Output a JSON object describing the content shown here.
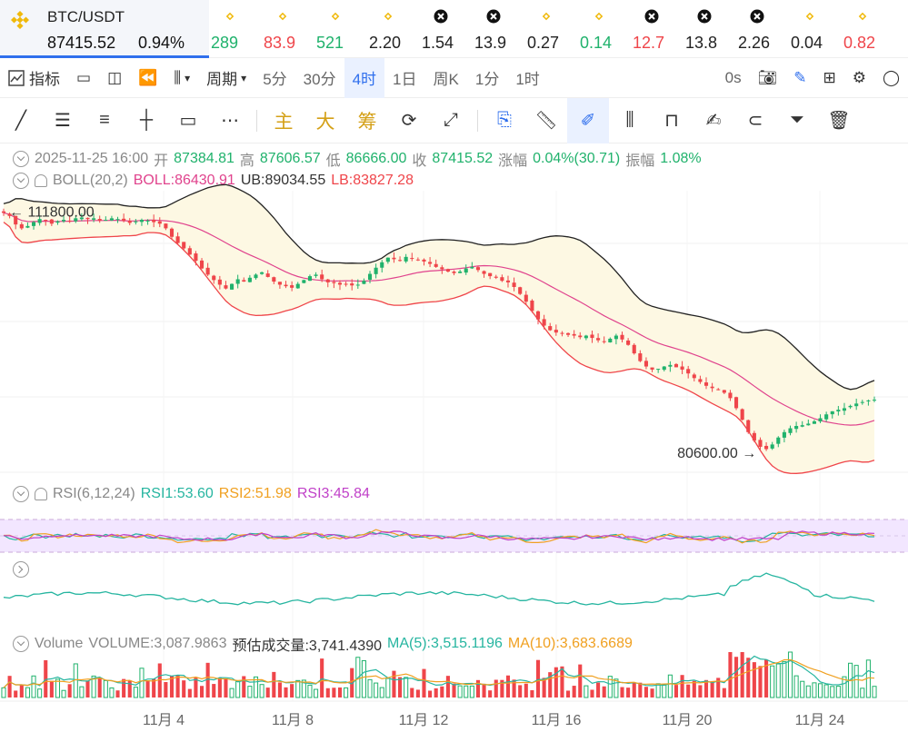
{
  "pair": {
    "symbol": "BTC/USDT",
    "price": "87415.52",
    "change": "0.94%",
    "icon": "binance-icon"
  },
  "tickers": [
    {
      "icon": "binance-icon",
      "value": "289",
      "tone": "up"
    },
    {
      "icon": "binance-icon",
      "value": "83.9",
      "tone": "dn"
    },
    {
      "icon": "binance-icon",
      "value": "521",
      "tone": "up"
    },
    {
      "icon": "binance-icon",
      "value": "2.20",
      "tone": "nt"
    },
    {
      "icon": "x-coin-icon",
      "value": "1.54",
      "tone": "nt"
    },
    {
      "icon": "x-coin-icon",
      "value": "13.9",
      "tone": "nt"
    },
    {
      "icon": "binance-icon",
      "value": "0.27",
      "tone": "nt"
    },
    {
      "icon": "binance-icon",
      "value": "0.14",
      "tone": "up"
    },
    {
      "icon": "x-coin-icon",
      "value": "12.7",
      "tone": "dn"
    },
    {
      "icon": "x-coin-icon",
      "value": "13.8",
      "tone": "nt"
    },
    {
      "icon": "x-coin-icon",
      "value": "2.26",
      "tone": "nt"
    },
    {
      "icon": "binance-icon",
      "value": "0.04",
      "tone": "nt"
    },
    {
      "icon": "binance-icon",
      "value": "0.82",
      "tone": "dn"
    }
  ],
  "toolbar": {
    "indicators": "指标",
    "period_label": "周期",
    "periods": [
      "5分",
      "30分",
      "4时",
      "1日",
      "周K",
      "1分",
      "1时"
    ],
    "active_period": "4时",
    "countdown": "0s"
  },
  "tools": {
    "main": "主",
    "big": "大",
    "chip": "筹"
  },
  "ohlc": {
    "time": "2025-11-25 16:00",
    "open_label": "开",
    "open": "87384.81",
    "high_label": "高",
    "high": "87606.57",
    "low_label": "低",
    "low": "86666.00",
    "close_label": "收",
    "close": "87415.52",
    "change_label": "涨幅",
    "change": "0.04%(30.71)",
    "amp_label": "振幅",
    "amp": "1.08%"
  },
  "boll": {
    "label": "BOLL(20,2)",
    "mid": "BOLL:86430.91",
    "ub": "UB:89034.55",
    "lb": "LB:83827.28"
  },
  "rsi": {
    "label": "RSI(6,12,24)",
    "rsi1": "RSI1:53.60",
    "rsi2": "RSI2:51.98",
    "rsi3": "RSI3:45.84"
  },
  "volume": {
    "label": "Volume",
    "value": "VOLUME:3,087.9863",
    "estimate_label": "预估成交量:",
    "estimate": "3,741.4390",
    "ma5": "MA(5):3,515.1196",
    "ma10": "MA(10):3,683.6689"
  },
  "annotations": {
    "high": "111800.00",
    "low": "80600.00"
  },
  "x_ticks": [
    "11月 4",
    "11月 8",
    "11月 12",
    "11月 16",
    "11月 20",
    "11月 24"
  ],
  "colors": {
    "up": "#20b26c",
    "down": "#ef454a",
    "accent": "#2f6fed",
    "ub": "#222222",
    "mid": "#e0438d",
    "lb": "#ef454a",
    "band": "#fdf8e3"
  },
  "chart_data": {
    "type": "candlestick",
    "timeframe": "4时",
    "price_range": [
      78000,
      114000
    ],
    "candles_close": [
      111600,
      111200,
      110100,
      109600,
      109900,
      110400,
      110800,
      110600,
      110200,
      110500,
      110700,
      110600,
      110900,
      111000,
      110800,
      110900,
      110600,
      110700,
      110900,
      110800,
      110600,
      110300,
      110500,
      110700,
      110600,
      110400,
      110200,
      109600,
      108500,
      107700,
      107000,
      106200,
      105400,
      104400,
      103600,
      102900,
      102300,
      101800,
      102400,
      103000,
      102700,
      103200,
      103600,
      103900,
      103300,
      102700,
      102300,
      102100,
      101900,
      102400,
      102900,
      103400,
      103600,
      103000,
      102600,
      102500,
      102300,
      102400,
      102200,
      102300,
      102800,
      103700,
      104500,
      105200,
      105800,
      105600,
      105400,
      105900,
      105700,
      105500,
      105300,
      105000,
      104600,
      104300,
      104000,
      103800,
      104000,
      104400,
      104600,
      104200,
      103700,
      103400,
      103200,
      102800,
      102600,
      102000,
      101100,
      100100,
      98900,
      97800,
      97000,
      96400,
      96100,
      96000,
      95800,
      95700,
      95500,
      95700,
      95400,
      95100,
      94900,
      95300,
      95700,
      95200,
      94500,
      93400,
      92400,
      91700,
      91300,
      91400,
      91700,
      91900,
      91600,
      91300,
      90800,
      90200,
      89700,
      89200,
      88900,
      88700,
      88300,
      87600,
      86300,
      84800,
      83200,
      82100,
      81300,
      81000,
      81600,
      82500,
      83200,
      83700,
      84000,
      84100,
      84300,
      84600,
      85000,
      85500,
      85900,
      86100,
      86300,
      86600,
      86900,
      87100,
      87300,
      87400
    ]
  },
  "rsi_range": [
    0,
    100
  ],
  "rsi_levels": [
    70,
    50,
    30
  ]
}
